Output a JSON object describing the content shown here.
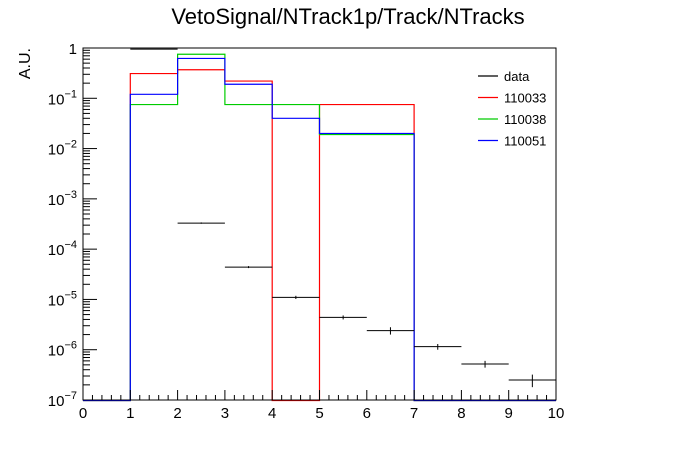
{
  "chart_data": {
    "type": "histogram",
    "title": "VetoSignal/NTrack1p/Track/NTracks",
    "ylabel": "A.U.",
    "xlabel": "",
    "xlim": [
      0,
      10
    ],
    "ylim": [
      1e-07,
      1
    ],
    "yscale": "log",
    "grid": false,
    "legend_position": "top-right",
    "bin_edges": [
      0,
      1,
      2,
      3,
      4,
      5,
      6,
      7,
      8,
      9,
      10
    ],
    "x_tick_labels": [
      "0",
      "1",
      "2",
      "3",
      "4",
      "5",
      "6",
      "7",
      "8",
      "9",
      "10"
    ],
    "y_tick_labels": [
      {
        "value": 1,
        "base": "1",
        "exp": ""
      },
      {
        "value": 0.1,
        "base": "10",
        "exp": "−1"
      },
      {
        "value": 0.01,
        "base": "10",
        "exp": "−2"
      },
      {
        "value": 0.001,
        "base": "10",
        "exp": "−3"
      },
      {
        "value": 0.0001,
        "base": "10",
        "exp": "−4"
      },
      {
        "value": 1e-05,
        "base": "10",
        "exp": "−5"
      },
      {
        "value": 1e-06,
        "base": "10",
        "exp": "−6"
      },
      {
        "value": 1e-07,
        "base": "10",
        "exp": "−7"
      }
    ],
    "series": [
      {
        "name": "data",
        "style": "points",
        "color": "#000000",
        "values": [
          null,
          0.95,
          0.00033,
          4.4e-05,
          1.1e-05,
          4.4e-06,
          2.4e-06,
          1.15e-06,
          5.2e-07,
          2.5e-07
        ],
        "errors": [
          null,
          0.002,
          1e-05,
          2e-06,
          8e-07,
          4e-07,
          4e-07,
          1.5e-07,
          8e-08,
          7e-08
        ]
      },
      {
        "name": "110033",
        "style": "step",
        "color": "#ff0000",
        "values": [
          null,
          0.31,
          0.37,
          0.22,
          null,
          0.075,
          0.075,
          null,
          null,
          null
        ]
      },
      {
        "name": "110038",
        "style": "step",
        "color": "#00cc00",
        "values": [
          null,
          0.075,
          0.75,
          0.075,
          0.075,
          0.019,
          0.019,
          null,
          null,
          null
        ]
      },
      {
        "name": "110051",
        "style": "step",
        "color": "#0000ff",
        "values": [
          null,
          0.12,
          0.62,
          0.19,
          0.04,
          0.02,
          0.02,
          null,
          null,
          null
        ]
      }
    ]
  }
}
